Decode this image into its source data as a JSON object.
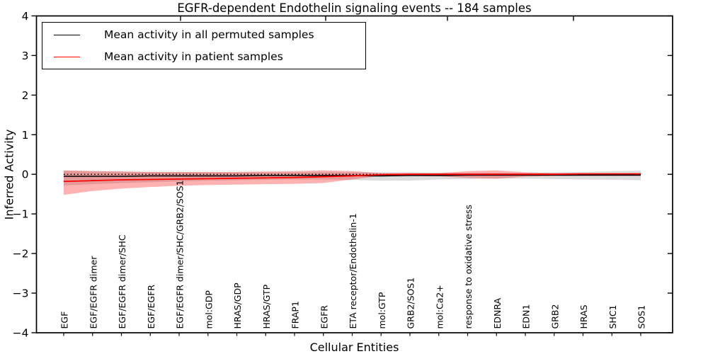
{
  "figure": {
    "title": "EGFR-dependent Endothelin signaling events -- 184 samples",
    "xlabel": "Cellular Entities",
    "ylabel": "Inferred Activity"
  },
  "legend": {
    "items": [
      {
        "label": "Mean activity in all permuted samples",
        "color": "#000000"
      },
      {
        "label": "Mean activity in patient samples",
        "color": "#ff0000"
      }
    ]
  },
  "chart_data": {
    "type": "line",
    "title": "EGFR-dependent Endothelin signaling events -- 184 samples",
    "xlabel": "Cellular Entities",
    "ylabel": "Inferred Activity",
    "ylim": [
      -4,
      4
    ],
    "yticks": [
      -4,
      -3,
      -2,
      -1,
      0,
      1,
      2,
      3,
      4
    ],
    "grid": false,
    "legend_position": "upper left",
    "reference_line": 0,
    "categories": [
      "EGF",
      "EGF/EGFR dimer",
      "EGF/EGFR dimer/SHC",
      "EGF/EGFR",
      "EGF/EGFR dimer/SHC/GRB2/SOS1",
      "mol:GDP",
      "HRAS/GDP",
      "HRAS/GTP",
      "FRAP1",
      "EGFR",
      "ETA receptor/Endothelin-1",
      "mol:GTP",
      "GRB2/SOS1",
      "mol:Ca2+",
      "response to oxidative stress",
      "EDNRA",
      "EDN1",
      "GRB2",
      "HRAS",
      "SHC1",
      "SOS1"
    ],
    "series": [
      {
        "name": "Mean activity in all permuted samples",
        "color": "#000000",
        "style": "solid",
        "values": [
          -0.05,
          -0.05,
          -0.05,
          -0.04,
          -0.04,
          -0.04,
          -0.04,
          -0.03,
          -0.03,
          -0.03,
          -0.03,
          -0.04,
          -0.03,
          -0.03,
          -0.02,
          -0.02,
          -0.02,
          -0.02,
          -0.02,
          -0.02,
          -0.02
        ]
      },
      {
        "name": "Mean activity in patient samples",
        "color": "#ff0000",
        "style": "solid",
        "values": [
          -0.18,
          -0.16,
          -0.14,
          -0.13,
          -0.12,
          -0.11,
          -0.1,
          -0.09,
          -0.08,
          -0.06,
          -0.04,
          -0.01,
          0.0,
          0.0,
          0.0,
          0.0,
          0.0,
          0.0,
          0.01,
          0.01,
          0.01
        ]
      }
    ],
    "bands": [
      {
        "name": "permuted-samples-std-band",
        "color": "rgba(128,128,128,0.28)",
        "upper": [
          0.09,
          0.08,
          0.07,
          0.06,
          0.06,
          0.05,
          0.05,
          0.05,
          0.05,
          0.05,
          0.05,
          0.05,
          0.05,
          0.04,
          0.04,
          0.04,
          0.04,
          0.05,
          0.06,
          0.08,
          0.09
        ],
        "lower": [
          -0.28,
          -0.25,
          -0.22,
          -0.2,
          -0.18,
          -0.16,
          -0.15,
          -0.14,
          -0.13,
          -0.13,
          -0.14,
          -0.16,
          -0.16,
          -0.13,
          -0.12,
          -0.11,
          -0.11,
          -0.12,
          -0.13,
          -0.14,
          -0.15
        ]
      },
      {
        "name": "patient-samples-std-band",
        "color": "rgba(255,0,0,0.30)",
        "upper": [
          0.1,
          0.08,
          0.07,
          0.06,
          0.06,
          0.06,
          0.06,
          0.07,
          0.08,
          0.1,
          0.08,
          0.03,
          0.03,
          0.03,
          0.08,
          0.1,
          0.05,
          0.03,
          0.03,
          0.03,
          0.03
        ],
        "lower": [
          -0.52,
          -0.42,
          -0.36,
          -0.32,
          -0.29,
          -0.27,
          -0.26,
          -0.25,
          -0.24,
          -0.22,
          -0.13,
          -0.04,
          -0.04,
          -0.05,
          -0.09,
          -0.11,
          -0.06,
          -0.04,
          -0.04,
          -0.04,
          -0.04
        ]
      }
    ]
  }
}
